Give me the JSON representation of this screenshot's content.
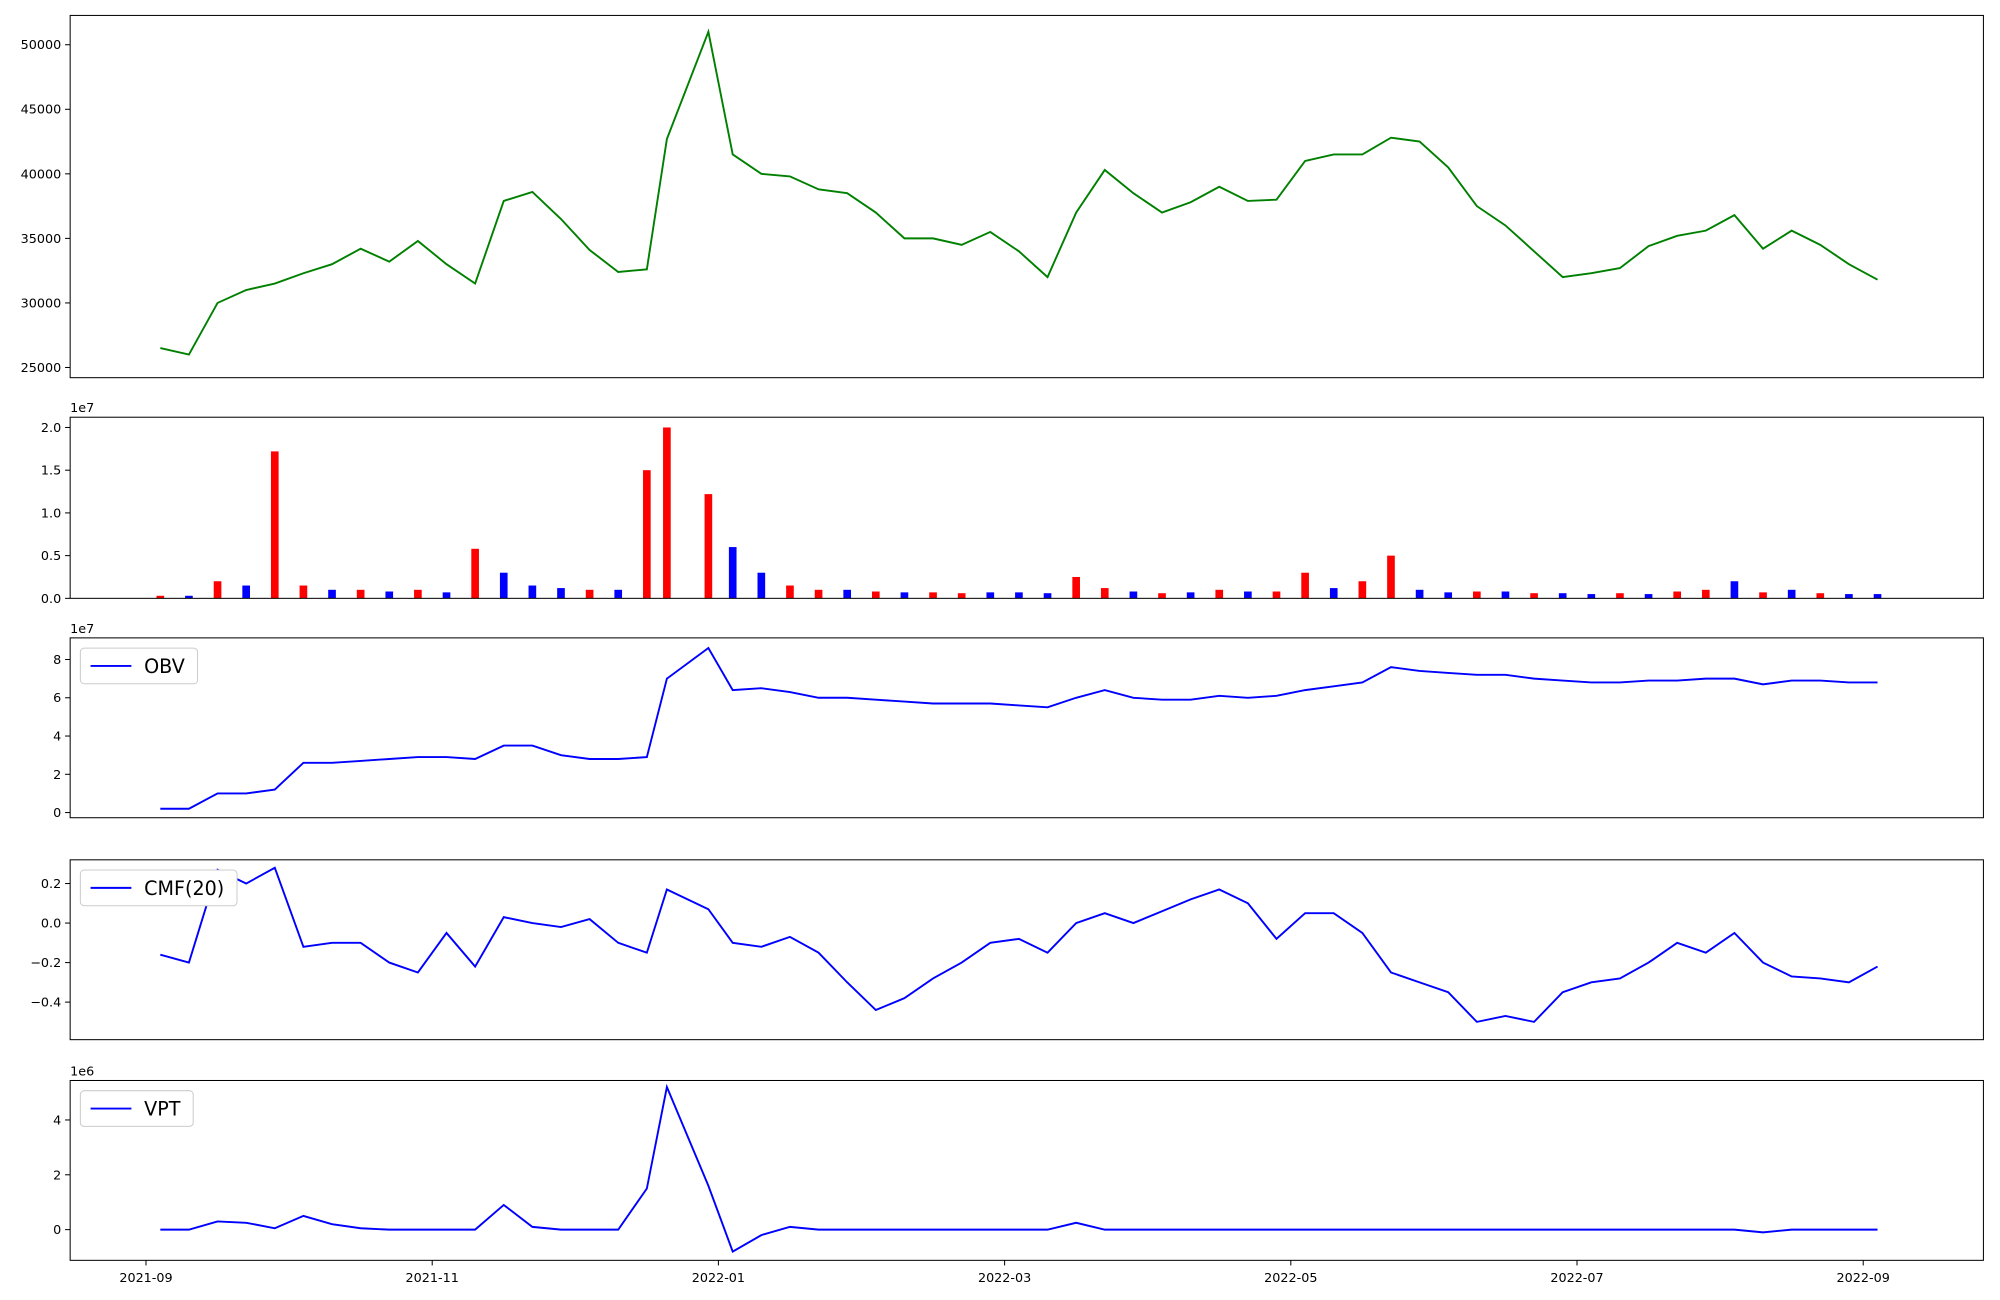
{
  "chart_data": [
    {
      "type": "line",
      "color": "#008000",
      "x": [
        0.1,
        0.3,
        0.5,
        0.7,
        0.9,
        1.1,
        1.3,
        1.5,
        1.7,
        1.9,
        2.1,
        2.3,
        2.5,
        2.7,
        2.9,
        3.1,
        3.3,
        3.5,
        3.64,
        3.93,
        4.1,
        4.3,
        4.5,
        4.7,
        4.9,
        5.1,
        5.3,
        5.5,
        5.7,
        5.9,
        6.1,
        6.3,
        6.5,
        6.7,
        6.9,
        7.1,
        7.3,
        7.5,
        7.7,
        7.9,
        8.1,
        8.3,
        8.5,
        8.7,
        8.9,
        9.1,
        9.3,
        9.5,
        9.7,
        9.9,
        10.1,
        10.3,
        10.5,
        10.7,
        10.9,
        11.1,
        11.3,
        11.5,
        11.7,
        11.9,
        12.1
      ],
      "values": [
        26500,
        26000,
        30000,
        31000,
        31500,
        32300,
        33000,
        34200,
        33200,
        34800,
        33000,
        31500,
        37900,
        38600,
        36500,
        34100,
        32400,
        32600,
        42700,
        51000,
        41500,
        40000,
        39800,
        38800,
        38500,
        37000,
        35000,
        35000,
        34500,
        35500,
        34000,
        32000,
        37000,
        40300,
        38500,
        37000,
        37800,
        39000,
        37900,
        38000,
        41000,
        41500,
        41500,
        42800,
        42500,
        40500,
        37500,
        36000,
        34000,
        32000,
        32300,
        32700,
        34400,
        35200,
        35600,
        36800,
        34200,
        35600,
        34500,
        33000,
        31800
      ],
      "xlim": [
        -0.53,
        12.84
      ],
      "ylim": [
        24210,
        52270
      ],
      "yticks": [
        25000,
        30000,
        35000,
        40000,
        45000,
        50000
      ]
    },
    {
      "type": "bar",
      "offset_label": "1e7",
      "x": [
        0.1,
        0.3,
        0.5,
        0.7,
        0.9,
        1.1,
        1.3,
        1.5,
        1.7,
        1.9,
        2.1,
        2.3,
        2.5,
        2.7,
        2.9,
        3.1,
        3.3,
        3.5,
        3.64,
        3.93,
        4.1,
        4.3,
        4.5,
        4.7,
        4.9,
        5.1,
        5.3,
        5.5,
        5.7,
        5.9,
        6.1,
        6.3,
        6.5,
        6.7,
        6.9,
        7.1,
        7.3,
        7.5,
        7.7,
        7.9,
        8.1,
        8.3,
        8.5,
        8.7,
        8.9,
        9.1,
        9.3,
        9.5,
        9.7,
        9.9,
        10.1,
        10.3,
        10.5,
        10.7,
        10.9,
        11.1,
        11.3,
        11.5,
        11.7,
        11.9,
        12.1
      ],
      "values": [
        0.03,
        0.03,
        0.2,
        0.15,
        1.72,
        0.15,
        0.1,
        0.1,
        0.08,
        0.1,
        0.07,
        0.58,
        0.3,
        0.15,
        0.12,
        0.1,
        0.1,
        1.5,
        2.0,
        1.22,
        0.6,
        0.3,
        0.15,
        0.1,
        0.1,
        0.08,
        0.07,
        0.07,
        0.06,
        0.07,
        0.07,
        0.06,
        0.25,
        0.12,
        0.08,
        0.06,
        0.07,
        0.1,
        0.08,
        0.08,
        0.3,
        0.12,
        0.2,
        0.5,
        0.1,
        0.07,
        0.08,
        0.08,
        0.06,
        0.06,
        0.05,
        0.06,
        0.05,
        0.08,
        0.1,
        0.2,
        0.07,
        0.1,
        0.06,
        0.05,
        0.05
      ],
      "colors": [
        "red",
        "blue",
        "red",
        "blue",
        "red",
        "red",
        "blue",
        "red",
        "blue",
        "red",
        "blue",
        "red",
        "blue",
        "blue",
        "blue",
        "red",
        "blue",
        "red",
        "red",
        "red",
        "blue",
        "blue",
        "red",
        "red",
        "blue",
        "red",
        "blue",
        "red",
        "red",
        "blue",
        "blue",
        "blue",
        "red",
        "red",
        "blue",
        "red",
        "blue",
        "red",
        "blue",
        "red",
        "red",
        "blue",
        "red",
        "red",
        "blue",
        "blue",
        "red",
        "blue",
        "red",
        "blue",
        "blue",
        "red",
        "blue",
        "red",
        "red",
        "blue",
        "red",
        "blue",
        "red",
        "blue",
        "blue"
      ],
      "xlim": [
        -0.53,
        12.84
      ],
      "ylim": [
        0,
        2.12
      ],
      "yticks": [
        {
          "value": 0,
          "label": "0.0"
        },
        {
          "value": 0.5,
          "label": "0.5"
        },
        {
          "value": 1,
          "label": "1.0"
        },
        {
          "value": 1.5,
          "label": "1.5"
        },
        {
          "value": 2,
          "label": "2.0"
        }
      ]
    },
    {
      "type": "line",
      "offset_label": "1e7",
      "legend": "upper left",
      "x": [
        0.1,
        0.3,
        0.5,
        0.7,
        0.9,
        1.1,
        1.3,
        1.5,
        1.7,
        1.9,
        2.1,
        2.3,
        2.5,
        2.7,
        2.9,
        3.1,
        3.3,
        3.5,
        3.64,
        3.93,
        4.1,
        4.3,
        4.5,
        4.7,
        4.9,
        5.1,
        5.3,
        5.5,
        5.7,
        5.9,
        6.1,
        6.3,
        6.5,
        6.7,
        6.9,
        7.1,
        7.3,
        7.5,
        7.7,
        7.9,
        8.1,
        8.3,
        8.5,
        8.7,
        8.9,
        9.1,
        9.3,
        9.5,
        9.7,
        9.9,
        10.1,
        10.3,
        10.5,
        10.7,
        10.9,
        11.1,
        11.3,
        11.5,
        11.7,
        11.9,
        12.1
      ],
      "series": [
        {
          "name": "OBV",
          "color": "#0000ff",
          "values": [
            0.2,
            0.2,
            1.0,
            1.0,
            1.2,
            2.6,
            2.6,
            2.7,
            2.8,
            2.9,
            2.9,
            2.8,
            3.5,
            3.5,
            3.0,
            2.8,
            2.8,
            2.9,
            7.0,
            8.6,
            6.4,
            6.5,
            6.3,
            6.0,
            6.0,
            5.9,
            5.8,
            5.7,
            5.7,
            5.7,
            5.6,
            5.5,
            6.0,
            6.4,
            6.0,
            5.9,
            5.9,
            6.1,
            6.0,
            6.1,
            6.4,
            6.6,
            6.8,
            7.6,
            7.4,
            7.3,
            7.2,
            7.2,
            7.0,
            6.9,
            6.8,
            6.8,
            6.9,
            6.9,
            7.0,
            7.0,
            6.7,
            6.9,
            6.9,
            6.8,
            6.8
          ]
        }
      ],
      "xlim": [
        -0.53,
        12.84
      ],
      "ylim": [
        -0.27,
        9.13
      ],
      "yticks": [
        0,
        2,
        4,
        6,
        8
      ]
    },
    {
      "type": "line",
      "legend": "upper left",
      "x": [
        0.1,
        0.3,
        0.5,
        0.7,
        0.9,
        1.1,
        1.3,
        1.5,
        1.7,
        1.9,
        2.1,
        2.3,
        2.5,
        2.7,
        2.9,
        3.1,
        3.3,
        3.5,
        3.64,
        3.93,
        4.1,
        4.3,
        4.5,
        4.7,
        4.9,
        5.1,
        5.3,
        5.5,
        5.7,
        5.9,
        6.1,
        6.3,
        6.5,
        6.7,
        6.9,
        7.1,
        7.3,
        7.5,
        7.7,
        7.9,
        8.1,
        8.3,
        8.5,
        8.7,
        8.9,
        9.1,
        9.3,
        9.5,
        9.7,
        9.9,
        10.1,
        10.3,
        10.5,
        10.7,
        10.9,
        11.1,
        11.3,
        11.5,
        11.7,
        11.9,
        12.1
      ],
      "series": [
        {
          "name": "CMF(20)",
          "color": "#0000ff",
          "values": [
            -0.16,
            -0.2,
            0.27,
            0.2,
            0.28,
            -0.12,
            -0.1,
            -0.1,
            -0.2,
            -0.25,
            -0.05,
            -0.22,
            0.03,
            0.0,
            -0.02,
            0.02,
            -0.1,
            -0.15,
            0.17,
            0.07,
            -0.1,
            -0.12,
            -0.07,
            -0.15,
            -0.3,
            -0.44,
            -0.38,
            -0.28,
            -0.2,
            -0.1,
            -0.08,
            -0.15,
            0.0,
            0.05,
            0.0,
            0.06,
            0.12,
            0.17,
            0.1,
            -0.08,
            0.05,
            0.05,
            -0.05,
            -0.25,
            -0.3,
            -0.35,
            -0.5,
            -0.47,
            -0.5,
            -0.35,
            -0.3,
            -0.28,
            -0.2,
            -0.1,
            -0.15,
            -0.05,
            -0.2,
            -0.27,
            -0.28,
            -0.3,
            -0.22
          ]
        }
      ],
      "xlim": [
        -0.53,
        12.84
      ],
      "ylim": [
        -0.59,
        0.32
      ],
      "yticks": [
        {
          "value": -0.4,
          "label": "−0.4"
        },
        {
          "value": -0.2,
          "label": "−0.2"
        },
        {
          "value": 0,
          "label": "0.0"
        },
        {
          "value": 0.2,
          "label": "0.2"
        }
      ]
    },
    {
      "type": "line",
      "offset_label": "1e6",
      "legend": "upper left",
      "x": [
        0.1,
        0.3,
        0.5,
        0.7,
        0.9,
        1.1,
        1.3,
        1.5,
        1.7,
        1.9,
        2.1,
        2.3,
        2.5,
        2.7,
        2.9,
        3.1,
        3.3,
        3.5,
        3.64,
        3.93,
        4.1,
        4.3,
        4.5,
        4.7,
        4.9,
        5.1,
        5.3,
        5.5,
        5.7,
        5.9,
        6.1,
        6.3,
        6.5,
        6.7,
        6.9,
        7.1,
        7.3,
        7.5,
        7.7,
        7.9,
        8.1,
        8.3,
        8.5,
        8.7,
        8.9,
        9.1,
        9.3,
        9.5,
        9.7,
        9.9,
        10.1,
        10.3,
        10.5,
        10.7,
        10.9,
        11.1,
        11.3,
        11.5,
        11.7,
        11.9,
        12.1
      ],
      "series": [
        {
          "name": "VPT",
          "color": "#0000ff",
          "values": [
            0,
            0,
            0.3,
            0.25,
            0.05,
            0.5,
            0.2,
            0.05,
            0,
            0,
            0,
            0,
            0.9,
            0.1,
            0,
            0,
            0,
            1.5,
            5.2,
            1.6,
            -0.8,
            -0.2,
            0.1,
            0,
            0,
            0,
            0,
            0,
            0,
            0,
            0,
            0,
            0.25,
            0,
            0,
            0,
            0,
            0,
            0,
            0,
            0,
            0,
            0,
            0,
            0,
            0,
            0,
            0,
            0,
            0,
            0,
            0,
            0,
            0,
            0,
            0,
            -0.1,
            0,
            0,
            0,
            0
          ]
        }
      ],
      "xlim": [
        -0.53,
        12.84
      ],
      "ylim": [
        -1.12,
        5.44
      ],
      "yticks": [
        0,
        2,
        4
      ],
      "xticks": [
        {
          "value": 0,
          "label": "2021-09"
        },
        {
          "value": 2,
          "label": "2021-11"
        },
        {
          "value": 4,
          "label": "2022-01"
        },
        {
          "value": 6,
          "label": "2022-03"
        },
        {
          "value": 8,
          "label": "2022-05"
        },
        {
          "value": 10,
          "label": "2022-07"
        },
        {
          "value": 12,
          "label": "2022-09"
        }
      ]
    }
  ]
}
